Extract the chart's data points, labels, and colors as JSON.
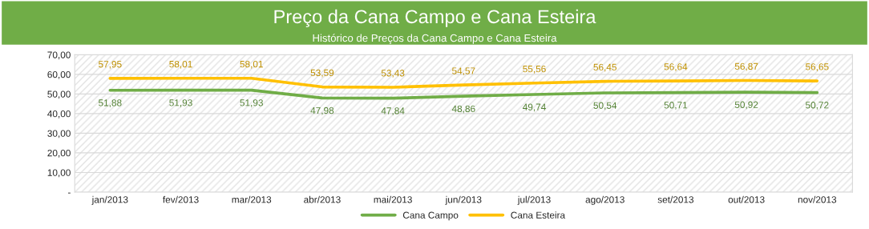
{
  "chart_data": {
    "type": "line",
    "title": "Preço da Cana Campo e Cana Esteira",
    "subtitle": "Histórico de Preços da Cana Campo e Cana Esteira",
    "categories": [
      "jan/2013",
      "fev/2013",
      "mar/2013",
      "abr/2013",
      "mai/2013",
      "jun/2013",
      "jul/2013",
      "ago/2013",
      "set/2013",
      "out/2013",
      "nov/2013"
    ],
    "series": [
      {
        "name": "Cana Campo",
        "color": "#70ad47",
        "values": [
          51.88,
          51.93,
          51.93,
          47.98,
          47.84,
          48.86,
          49.74,
          50.54,
          50.71,
          50.92,
          50.72
        ],
        "value_labels": [
          "51,88",
          "51,93",
          "51,93",
          "47,98",
          "47,84",
          "48,86",
          "49,74",
          "50,54",
          "50,71",
          "50,92",
          "50,72"
        ]
      },
      {
        "name": "Cana Esteira",
        "color": "#ffc000",
        "values": [
          57.95,
          58.01,
          58.01,
          53.59,
          53.43,
          54.57,
          55.56,
          56.45,
          56.64,
          56.87,
          56.65
        ],
        "value_labels": [
          "57,95",
          "58,01",
          "58,01",
          "53,59",
          "53,43",
          "54,57",
          "55,56",
          "56,45",
          "56,64",
          "56,87",
          "56,65"
        ]
      }
    ],
    "ylim": [
      0,
      70
    ],
    "yticks": [
      {
        "value": 0,
        "label": "-"
      },
      {
        "value": 10,
        "label": "10,00"
      },
      {
        "value": 20,
        "label": "20,00"
      },
      {
        "value": 30,
        "label": "30,00"
      },
      {
        "value": 40,
        "label": "40,00"
      },
      {
        "value": 50,
        "label": "50,00"
      },
      {
        "value": 60,
        "label": "60,00"
      },
      {
        "value": 70,
        "label": "70,00"
      }
    ],
    "grid": "y",
    "legend": "bottom",
    "marker": "none",
    "line_style": "solid"
  }
}
